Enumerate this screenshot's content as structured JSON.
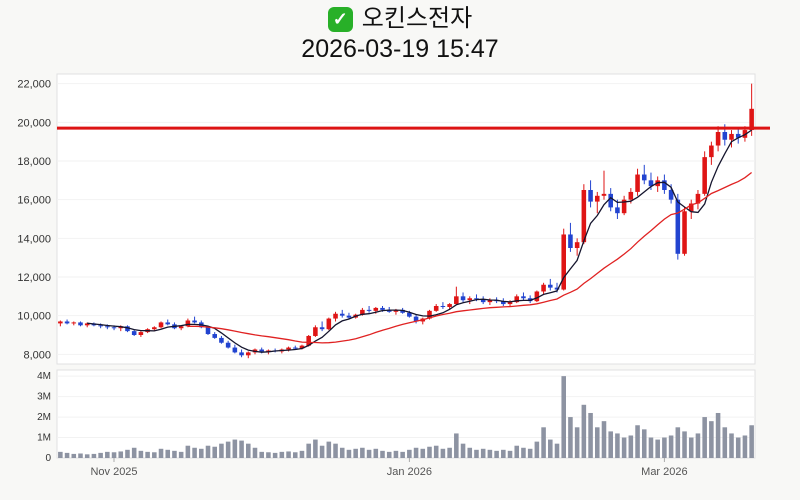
{
  "header": {
    "check_glyph": "✓",
    "icon_color": "#28b028",
    "title": "오킨스전자",
    "datetime": "2026-03-19 15:47"
  },
  "chart_data": {
    "type": "candlestick",
    "title": "오킨스전자",
    "subtitle": "2026-03-19 15:47",
    "legend_position": "none",
    "grid": "faint-horizontal",
    "up_color": "#df1515",
    "down_color": "#2244d0",
    "ma_short_color": "#15152e",
    "ma_long_color": "#e02222",
    "volume_color": "#8d93a2",
    "hline": {
      "value": 19700,
      "color": "#dd1414"
    },
    "price_axis": {
      "min": 7500,
      "max": 22500,
      "ticks": [
        8000,
        10000,
        12000,
        14000,
        16000,
        18000,
        20000,
        22000
      ]
    },
    "volume_axis": {
      "max": 4300000,
      "ticks": [
        {
          "value": 0,
          "label": "0"
        },
        {
          "value": 1000000,
          "label": "1M"
        },
        {
          "value": 2000000,
          "label": "2M"
        },
        {
          "value": 3000000,
          "label": "3M"
        },
        {
          "value": 4000000,
          "label": "4M"
        }
      ]
    },
    "x_labels": [
      {
        "index": 8,
        "label": "Nov 2025"
      },
      {
        "index": 52,
        "label": "Jan 2026"
      },
      {
        "index": 90,
        "label": "Mar 2026"
      }
    ],
    "candle_format": [
      "open",
      "high",
      "low",
      "close",
      "volume"
    ],
    "candles": [
      [
        9600,
        9750,
        9450,
        9700,
        300000
      ],
      [
        9700,
        9800,
        9550,
        9600,
        250000
      ],
      [
        9600,
        9700,
        9500,
        9650,
        200000
      ],
      [
        9650,
        9700,
        9450,
        9500,
        220000
      ],
      [
        9500,
        9650,
        9400,
        9600,
        180000
      ],
      [
        9600,
        9650,
        9450,
        9500,
        200000
      ],
      [
        9500,
        9600,
        9350,
        9450,
        250000
      ],
      [
        9450,
        9550,
        9300,
        9400,
        300000
      ],
      [
        9400,
        9500,
        9250,
        9350,
        280000
      ],
      [
        9350,
        9500,
        9200,
        9450,
        320000
      ],
      [
        9450,
        9500,
        9150,
        9200,
        400000
      ],
      [
        9200,
        9300,
        8950,
        9000,
        500000
      ],
      [
        9000,
        9200,
        8900,
        9150,
        350000
      ],
      [
        9150,
        9350,
        9100,
        9300,
        300000
      ],
      [
        9300,
        9450,
        9200,
        9400,
        280000
      ],
      [
        9400,
        9700,
        9350,
        9650,
        450000
      ],
      [
        9650,
        9800,
        9500,
        9550,
        400000
      ],
      [
        9550,
        9650,
        9300,
        9350,
        350000
      ],
      [
        9350,
        9500,
        9250,
        9450,
        300000
      ],
      [
        9450,
        9850,
        9400,
        9750,
        600000
      ],
      [
        9750,
        9950,
        9600,
        9650,
        500000
      ],
      [
        9650,
        9750,
        9350,
        9400,
        450000
      ],
      [
        9400,
        9450,
        9000,
        9050,
        600000
      ],
      [
        9050,
        9150,
        8800,
        8850,
        550000
      ],
      [
        8850,
        8950,
        8550,
        8600,
        700000
      ],
      [
        8600,
        8700,
        8300,
        8350,
        800000
      ],
      [
        8350,
        8500,
        8050,
        8100,
        900000
      ],
      [
        8100,
        8250,
        7850,
        7950,
        850000
      ],
      [
        7950,
        8150,
        7800,
        8100,
        700000
      ],
      [
        8100,
        8300,
        8000,
        8250,
        500000
      ],
      [
        8250,
        8350,
        8050,
        8150,
        300000
      ],
      [
        8150,
        8250,
        8000,
        8200,
        280000
      ],
      [
        8200,
        8300,
        8100,
        8150,
        250000
      ],
      [
        8150,
        8300,
        8050,
        8250,
        300000
      ],
      [
        8250,
        8400,
        8150,
        8350,
        320000
      ],
      [
        8350,
        8450,
        8250,
        8300,
        280000
      ],
      [
        8300,
        8500,
        8250,
        8450,
        350000
      ],
      [
        8450,
        9000,
        8400,
        8950,
        700000
      ],
      [
        8950,
        9500,
        8900,
        9400,
        900000
      ],
      [
        9400,
        9700,
        9200,
        9300,
        600000
      ],
      [
        9300,
        9900,
        9250,
        9850,
        800000
      ],
      [
        9850,
        10200,
        9700,
        10100,
        700000
      ],
      [
        10100,
        10300,
        9900,
        10000,
        500000
      ],
      [
        10000,
        10150,
        9800,
        9900,
        400000
      ],
      [
        9900,
        10100,
        9850,
        10050,
        450000
      ],
      [
        10050,
        10400,
        10000,
        10300,
        500000
      ],
      [
        10300,
        10500,
        10150,
        10250,
        400000
      ],
      [
        10250,
        10450,
        10100,
        10400,
        450000
      ],
      [
        10400,
        10500,
        10200,
        10300,
        350000
      ],
      [
        10300,
        10450,
        10150,
        10200,
        300000
      ],
      [
        10200,
        10350,
        10050,
        10300,
        350000
      ],
      [
        10300,
        10400,
        10100,
        10150,
        300000
      ],
      [
        10150,
        10250,
        9900,
        9950,
        400000
      ],
      [
        9950,
        10050,
        9600,
        9700,
        500000
      ],
      [
        9700,
        9900,
        9550,
        9850,
        450000
      ],
      [
        9850,
        10300,
        9800,
        10250,
        550000
      ],
      [
        10250,
        10600,
        10200,
        10500,
        600000
      ],
      [
        10500,
        10700,
        10350,
        10450,
        450000
      ],
      [
        10450,
        10650,
        10300,
        10600,
        500000
      ],
      [
        10600,
        11500,
        10550,
        11000,
        1200000
      ],
      [
        11000,
        11200,
        10700,
        10800,
        700000
      ],
      [
        10800,
        11000,
        10600,
        10900,
        500000
      ],
      [
        10900,
        11100,
        10750,
        10850,
        400000
      ],
      [
        10850,
        11000,
        10600,
        10700,
        450000
      ],
      [
        10700,
        10900,
        10550,
        10800,
        400000
      ],
      [
        10800,
        10950,
        10650,
        10750,
        350000
      ],
      [
        10750,
        10900,
        10500,
        10600,
        400000
      ],
      [
        10600,
        10800,
        10450,
        10700,
        350000
      ],
      [
        10700,
        11100,
        10650,
        11000,
        600000
      ],
      [
        11000,
        11200,
        10800,
        10900,
        500000
      ],
      [
        10900,
        11050,
        10650,
        10750,
        450000
      ],
      [
        10750,
        11300,
        10700,
        11250,
        800000
      ],
      [
        11250,
        11700,
        11100,
        11600,
        1500000
      ],
      [
        11600,
        11900,
        11300,
        11450,
        900000
      ],
      [
        11450,
        11700,
        11200,
        11350,
        700000
      ],
      [
        11350,
        14500,
        11300,
        14200,
        4000000
      ],
      [
        14200,
        14800,
        13300,
        13500,
        2000000
      ],
      [
        13500,
        14000,
        13100,
        13800,
        1500000
      ],
      [
        13800,
        16800,
        13700,
        16500,
        2600000
      ],
      [
        16500,
        17000,
        15600,
        15900,
        2200000
      ],
      [
        15900,
        16400,
        15300,
        16200,
        1500000
      ],
      [
        16200,
        17500,
        16000,
        16300,
        1800000
      ],
      [
        16300,
        16600,
        15400,
        15600,
        1300000
      ],
      [
        15600,
        16000,
        15000,
        15300,
        1200000
      ],
      [
        15300,
        16200,
        15200,
        16000,
        1000000
      ],
      [
        16000,
        16600,
        15800,
        16400,
        1100000
      ],
      [
        16400,
        17600,
        16200,
        17300,
        1600000
      ],
      [
        17300,
        17800,
        16800,
        17000,
        1400000
      ],
      [
        17000,
        17400,
        16500,
        16700,
        1000000
      ],
      [
        16700,
        17200,
        16400,
        17000,
        900000
      ],
      [
        17000,
        17300,
        16300,
        16500,
        1000000
      ],
      [
        16500,
        16800,
        15800,
        16000,
        1100000
      ],
      [
        16000,
        16300,
        12900,
        13200,
        1500000
      ],
      [
        13200,
        15600,
        13100,
        15400,
        1300000
      ],
      [
        15400,
        16000,
        15000,
        15800,
        1000000
      ],
      [
        15800,
        16500,
        15500,
        16300,
        1200000
      ],
      [
        16300,
        18500,
        16200,
        18200,
        2000000
      ],
      [
        18200,
        19000,
        17800,
        18800,
        1800000
      ],
      [
        18800,
        19800,
        18500,
        19500,
        2200000
      ],
      [
        19500,
        19900,
        18800,
        19100,
        1500000
      ],
      [
        19100,
        19600,
        18700,
        19400,
        1200000
      ],
      [
        19400,
        19700,
        18900,
        19200,
        1000000
      ],
      [
        19200,
        19800,
        19000,
        19600,
        1100000
      ],
      [
        19600,
        22000,
        19300,
        20700,
        1600000
      ]
    ]
  }
}
